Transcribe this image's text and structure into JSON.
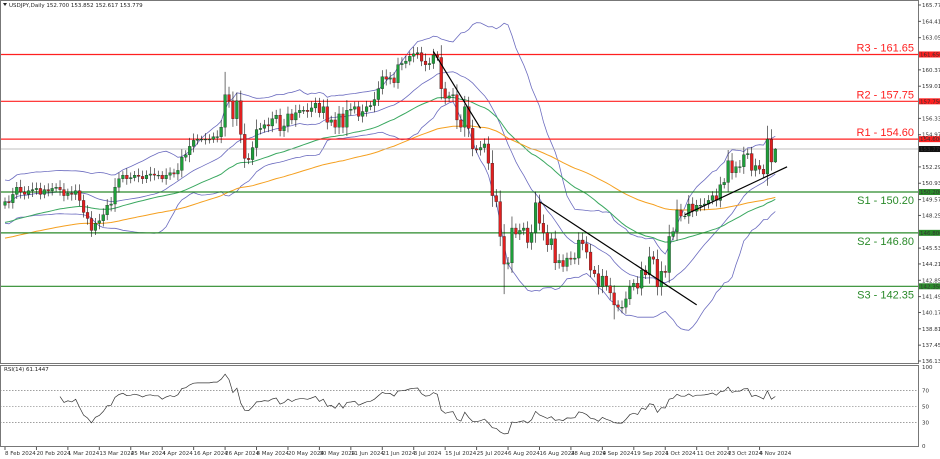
{
  "header": {
    "symbol_line": "USDJPY,Daily  152.700 153.852 152.617 153.779"
  },
  "rsi_header": "RSI(14) 61.1447",
  "colors": {
    "bull": "#1e9e3a",
    "bear": "#e02020",
    "bands": "#6b6bbf",
    "ma_fast": "#3aa860",
    "ma_slow": "#f5a020",
    "resistance": "#ff2020",
    "support": "#2a8a2a",
    "current": "#111111",
    "trend": "#000000"
  },
  "chart_data": {
    "type": "candlestick",
    "symbol": "USDJPY",
    "timeframe": "Daily",
    "last_bar": {
      "open": 152.7,
      "high": 153.852,
      "low": 152.617,
      "close": 153.779
    },
    "ylim": [
      136.13,
      165.77
    ],
    "y_ticks": [
      "165.770",
      "164.410",
      "163.050",
      "160.370",
      "159.010",
      "156.330",
      "154.970",
      "152.290",
      "150.930",
      "149.570",
      "148.250",
      "145.530",
      "144.210",
      "142.850",
      "141.490",
      "140.170",
      "138.810",
      "137.450",
      "136.130"
    ],
    "x_ticks": [
      {
        "bar": 0,
        "label": "8 Feb 2024"
      },
      {
        "bar": 8,
        "label": "20 Feb 2024"
      },
      {
        "bar": 16,
        "label": "1 Mar 2024"
      },
      {
        "bar": 24,
        "label": "13 Mar 2024"
      },
      {
        "bar": 32,
        "label": "25 Mar 2024"
      },
      {
        "bar": 40,
        "label": "4 Apr 2024"
      },
      {
        "bar": 48,
        "label": "16 Apr 2024"
      },
      {
        "bar": 56,
        "label": "26 Apr 2024"
      },
      {
        "bar": 64,
        "label": "8 May 2024"
      },
      {
        "bar": 72,
        "label": "20 May 2024"
      },
      {
        "bar": 80,
        "label": "30 May 2024"
      },
      {
        "bar": 88,
        "label": "11 Jun 2024"
      },
      {
        "bar": 96,
        "label": "21 Jun 2024"
      },
      {
        "bar": 104,
        "label": "3 Jul 2024"
      },
      {
        "bar": 112,
        "label": "15 Jul 2024"
      },
      {
        "bar": 120,
        "label": "25 Jul 2024"
      },
      {
        "bar": 128,
        "label": "6 Aug 2024"
      },
      {
        "bar": 136,
        "label": "16 Aug 2024"
      },
      {
        "bar": 144,
        "label": "28 Aug 2024"
      },
      {
        "bar": 152,
        "label": "9 Sep 2024"
      },
      {
        "bar": 160,
        "label": "19 Sep 2024"
      },
      {
        "bar": 168,
        "label": "1 Oct 2024"
      },
      {
        "bar": 176,
        "label": "11 Oct 2024"
      },
      {
        "bar": 184,
        "label": "23 Oct 2024"
      },
      {
        "bar": 192,
        "label": "4 Nov 2024"
      }
    ],
    "closes": [
      149.4,
      149.3,
      150.0,
      150.6,
      150.2,
      150.0,
      150.3,
      150.4,
      150.5,
      150.0,
      150.4,
      150.3,
      150.5,
      150.6,
      150.4,
      149.9,
      150.1,
      150.0,
      150.3,
      149.5,
      148.5,
      148.0,
      147.0,
      147.6,
      147.8,
      148.3,
      149.1,
      149.2,
      150.6,
      151.3,
      151.6,
      151.3,
      151.4,
      151.6,
      151.5,
      151.3,
      151.6,
      151.7,
      151.6,
      151.6,
      151.3,
      151.6,
      151.8,
      151.7,
      152.0,
      153.1,
      153.3,
      154.0,
      154.5,
      154.6,
      154.6,
      154.6,
      154.6,
      154.8,
      154.8,
      155.6,
      158.3,
      157.8,
      156.3,
      157.8,
      155.0,
      153.0,
      152.9,
      153.9,
      155.4,
      155.5,
      155.8,
      155.7,
      156.3,
      156.6,
      155.3,
      155.7,
      156.7,
      156.2,
      156.8,
      157.0,
      157.0,
      156.9,
      157.2,
      157.6,
      156.8,
      157.3,
      156.0,
      156.2,
      155.6,
      156.7,
      155.6,
      157.0,
      157.1,
      157.3,
      156.5,
      156.9,
      157.3,
      157.4,
      157.9,
      158.8,
      159.8,
      159.6,
      159.7,
      159.3,
      160.8,
      160.9,
      161.1,
      161.5,
      161.7,
      161.8,
      161.1,
      160.8,
      160.9,
      161.6,
      161.4,
      158.8,
      158.0,
      158.2,
      158.3,
      156.2,
      155.6,
      157.3,
      155.5,
      153.8,
      153.7,
      153.9,
      154.2,
      152.6,
      149.9,
      149.4,
      146.5,
      144.2,
      144.3,
      147.2,
      146.7,
      147.0,
      147.2,
      146.0,
      146.8,
      149.3,
      147.6,
      146.8,
      145.8,
      146.3,
      144.3,
      144.5,
      144.0,
      144.7,
      144.6,
      144.7,
      146.2,
      145.9,
      145.2,
      143.7,
      143.4,
      142.3,
      143.2,
      142.4,
      141.8,
      140.8,
      140.6,
      140.6,
      141.3,
      142.3,
      142.6,
      142.2,
      143.7,
      143.3,
      144.8,
      144.6,
      142.3,
      143.6,
      143.5,
      146.5,
      146.9,
      148.7,
      148.2,
      148.2,
      149.2,
      148.6,
      149.1,
      149.1,
      149.2,
      149.5,
      149.9,
      149.5,
      150.8,
      151.0,
      152.8,
      151.8,
      152.3,
      152.3,
      153.3,
      153.4,
      152.0,
      152.4,
      152.1,
      151.7,
      154.6,
      152.7,
      153.779
    ],
    "levels": [
      {
        "label": "R3 - 161.65",
        "price": 161.65,
        "tag": "161.650",
        "kind": "resistance"
      },
      {
        "label": "R2 - 157.75",
        "price": 157.75,
        "tag": "157.750",
        "kind": "resistance"
      },
      {
        "label": "R1 - 154.60",
        "price": 154.6,
        "tag": "154.600",
        "kind": "resistance"
      },
      {
        "label": "S1 - 150.20",
        "price": 150.2,
        "tag": "150.200",
        "kind": "support"
      },
      {
        "label": "S2 - 146.80",
        "price": 146.8,
        "tag": "146.800",
        "kind": "support"
      },
      {
        "label": "S3 - 142.35",
        "price": 142.35,
        "tag": "142.350",
        "kind": "support"
      }
    ],
    "current_price": {
      "price": 153.779,
      "tag": "153.779"
    },
    "trendlines": [
      {
        "from": {
          "bar": 109,
          "price": 161.9
        },
        "to": {
          "bar": 121,
          "price": 155.5
        }
      },
      {
        "from": {
          "bar": 136,
          "price": 149.4
        },
        "to": {
          "bar": 176,
          "price": 140.8
        }
      },
      {
        "from": {
          "bar": 173,
          "price": 148.3
        },
        "to": {
          "bar": 199,
          "price": 152.3
        }
      }
    ],
    "indicators": {
      "bollinger": {
        "period": 20,
        "dev": 2
      },
      "ma_fast": 50,
      "ma_slow": 100,
      "rsi": {
        "period": 14,
        "levels": [
          70,
          50,
          30
        ],
        "range": [
          0,
          100
        ],
        "ticks": [
          "100",
          "70",
          "50",
          "30",
          "0"
        ]
      }
    }
  }
}
